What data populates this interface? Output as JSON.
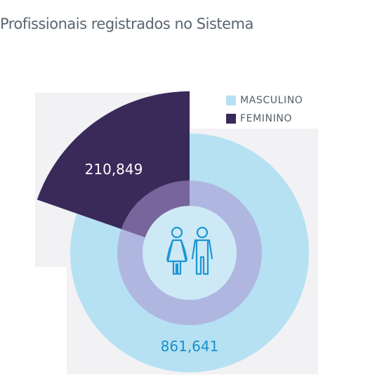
{
  "chart_data": {
    "type": "pie",
    "title": "Profissionais registrados no Sistema",
    "series": [
      {
        "name": "MASCULINO",
        "value": 861641,
        "label": "861,641",
        "color": "#b6e1f3"
      },
      {
        "name": "FEMININO",
        "value": 210849,
        "label": "210,849",
        "color": "#3a2a5a"
      }
    ],
    "legend_placement": "top-right",
    "label_colors": {
      "MASCULINO": "#1a8fc8",
      "FEMININO": "#ffffff"
    },
    "center_icon": "people-icon"
  }
}
